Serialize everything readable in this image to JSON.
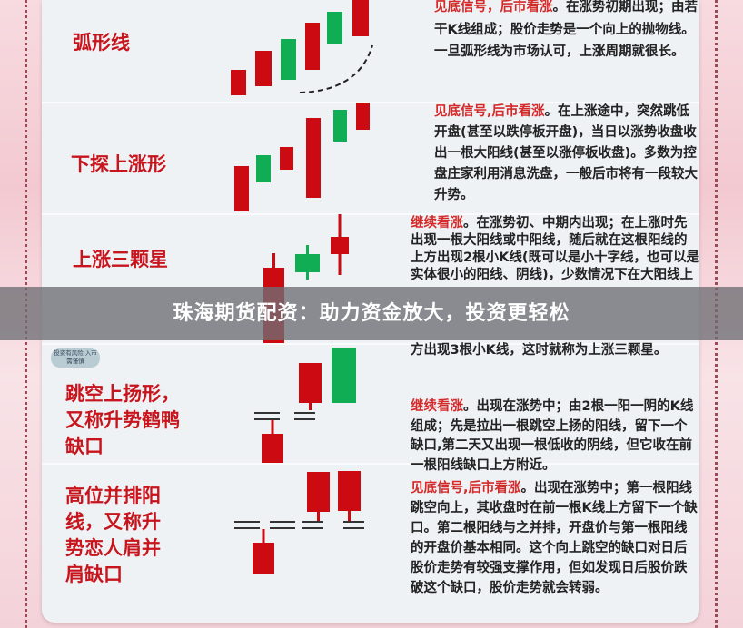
{
  "patterns": [
    {
      "title": "弧形线",
      "highlight": "见底信号，后市看涨",
      "text": "。在涨势初期出现；由若干K线组成；股价走势是一个向上的抛物线。一旦弧形线为市场认可，上涨周期就很长。"
    },
    {
      "title": "下探上涨形",
      "highlight": "见底信号,后市看涨",
      "text": "。在上涨途中，突然跳低开盘(甚至以跌停板开盘)，当日以涨势收盘收出一根大阳线(甚至以涨停板收盘)。多数为控盘庄家利用消息洗盘，一般后市将有一段较大升势。"
    },
    {
      "title": "上涨三颗星",
      "highlight": "继续看涨",
      "text": "。在涨势初、中期内出现；在上涨时先出现一根大阳线或中阳线，随后就在这根阳线的上方出现2根小K线(既可以是小十字线，也可以是实体很小的阳线、阴线)，少数情况下在大阳线上方出现3根小K线，这时就称为上涨三颗星。"
    },
    {
      "title": "跳空上扬形，又称升势鹤鸭缺口",
      "highlight": "继续看涨",
      "text": "。出现在涨势中；由2根一阳一阴的K线组成；先是拉出一根跳空上扬的阳线，留下一个缺口,第二天又出现一根低收的阴线，但它收在前一根阳线缺口上方附近。"
    },
    {
      "title": "高位并排阳线，又称升势恋人肩并肩缺口",
      "highlight": "见底信号,后市看涨",
      "text": "。出现在涨势中；第一根阳线跳空向上，其收盘时在前一根K线上方留下一个缺口。第二根阳线与之并排，开盘价与第一根阳线的开盘价基本相同。这个向上跳空的缺口对日后股价走势有较强支撑作用，但如发现日后股价跌破这个缺口，股价走势就会转弱。"
    }
  ],
  "badge": "投资有风险 入市需谨慎",
  "banner": "珠海期货配资：助力资金放大，投资更轻松",
  "colors": {
    "up_candle": "#cc0a12",
    "down_candle": "#10ad55",
    "title": "#c8141c",
    "highlight": "#d42a2a"
  }
}
